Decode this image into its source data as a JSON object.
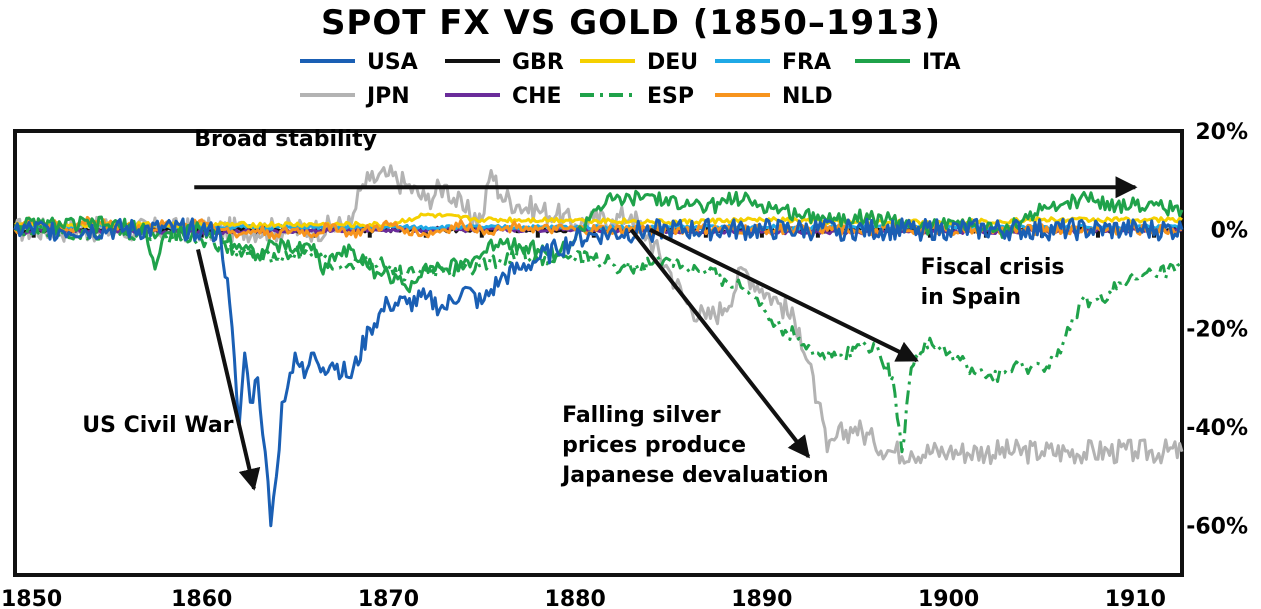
{
  "chart_data": {
    "type": "line",
    "title": "SPOT FX VS GOLD (1850–1913)",
    "xlabel": "",
    "ylabel": "",
    "xlim": [
      1850,
      1912.5
    ],
    "ylim": [
      -70,
      20
    ],
    "x_ticks": [
      {
        "value": 1850,
        "label": "1850"
      },
      {
        "value": 1860,
        "label": "1860"
      },
      {
        "value": 1870,
        "label": "1870"
      },
      {
        "value": 1880,
        "label": "1880"
      },
      {
        "value": 1890,
        "label": "1890"
      },
      {
        "value": 1900,
        "label": "1900"
      },
      {
        "value": 1910,
        "label": "1910"
      }
    ],
    "y_ticks": [
      {
        "value": 20,
        "label": "20%"
      },
      {
        "value": 0,
        "label": "0%"
      },
      {
        "value": -20,
        "label": "-20%"
      },
      {
        "value": -40,
        "label": "-40%"
      },
      {
        "value": -60,
        "label": "-60%"
      }
    ],
    "legend": [
      {
        "name": "USA",
        "color": "#1a5fb4",
        "dash": "solid"
      },
      {
        "name": "GBR",
        "color": "#111111",
        "dash": "solid"
      },
      {
        "name": "DEU",
        "color": "#f5d000",
        "dash": "solid"
      },
      {
        "name": "FRA",
        "color": "#1fa9e6",
        "dash": "solid"
      },
      {
        "name": "ITA",
        "color": "#1fa24a",
        "dash": "solid"
      },
      {
        "name": "JPN",
        "color": "#b3b3b3",
        "dash": "solid"
      },
      {
        "name": "CHE",
        "color": "#6a2c9a",
        "dash": "solid"
      },
      {
        "name": "ESP",
        "color": "#1fa24a",
        "dash": "dashdot"
      },
      {
        "name": "NLD",
        "color": "#f7941d",
        "dash": "solid"
      }
    ],
    "series": [
      {
        "name": "JPN",
        "color": "#b3b3b3",
        "dash": "solid",
        "x": [
          1850,
          1866,
          1868,
          1868.5,
          1869,
          1870,
          1871,
          1872,
          1873,
          1874,
          1875,
          1875.5,
          1876,
          1877,
          1878,
          1879,
          1880,
          1881,
          1882,
          1883,
          1884,
          1885,
          1886,
          1887,
          1888,
          1889,
          1890,
          1891,
          1892,
          1893,
          1893.5,
          1894,
          1895,
          1896,
          1897,
          1898,
          1900,
          1905,
          1910,
          1912.5
        ],
        "values": [
          0,
          0,
          1,
          8,
          10,
          11,
          9,
          6,
          9,
          4,
          2,
          12,
          7,
          5,
          4,
          3,
          1,
          2,
          2,
          3,
          -2,
          -8,
          -15,
          -18,
          -16,
          -8,
          -12,
          -15,
          -20,
          -35,
          -45,
          -42,
          -40,
          -43,
          -45,
          -45,
          -45,
          -45,
          -45,
          -45
        ]
      },
      {
        "name": "GBR",
        "color": "#111111",
        "dash": "solid",
        "x": [
          1850,
          1870,
          1890,
          1912.5
        ],
        "values": [
          0,
          0,
          0,
          0
        ]
      },
      {
        "name": "CHE",
        "color": "#6a2c9a",
        "dash": "solid",
        "x": [
          1850,
          1850.5,
          1851,
          1860,
          1870,
          1880,
          1890,
          1900,
          1912.5
        ],
        "values": [
          0,
          -1,
          0,
          -0.5,
          0,
          0,
          -0.5,
          -0.5,
          0
        ]
      },
      {
        "name": "FRA",
        "color": "#1fa9e6",
        "dash": "solid",
        "x": [
          1850,
          1855,
          1860,
          1865,
          1870,
          1875,
          1880,
          1885,
          1890,
          1895,
          1900,
          1905,
          1912.5
        ],
        "values": [
          0.5,
          1,
          0.5,
          0.5,
          0.5,
          0.5,
          0.5,
          0.5,
          0.5,
          0.5,
          0.5,
          0.5,
          0.5
        ]
      },
      {
        "name": "DEU",
        "color": "#f5d000",
        "dash": "solid",
        "x": [
          1850,
          1860,
          1870,
          1872,
          1875,
          1880,
          1885,
          1890,
          1895,
          1900,
          1905,
          1912.5
        ],
        "values": [
          1,
          1,
          1,
          3,
          2,
          2,
          1.5,
          2,
          1.5,
          1.5,
          2,
          2
        ]
      },
      {
        "name": "NLD",
        "color": "#f7941d",
        "dash": "solid",
        "x": [
          1850,
          1851,
          1852,
          1853,
          1854,
          1855,
          1856,
          1857,
          1858,
          1859,
          1860,
          1861,
          1862,
          1863,
          1864,
          1865,
          1866,
          1867,
          1868,
          1869,
          1870,
          1871,
          1872,
          1873,
          1874,
          1875,
          1876,
          1877,
          1878,
          1879,
          1880,
          1885,
          1890,
          1900,
          1912.5
        ],
        "values": [
          0,
          2,
          1,
          0,
          2,
          1,
          1,
          0,
          1,
          1,
          2,
          0,
          -1,
          0,
          -1,
          0,
          -1,
          1,
          -1,
          0,
          1,
          0,
          -1,
          0,
          1,
          0,
          0,
          1,
          0,
          0,
          0,
          0,
          0,
          0,
          0
        ]
      },
      {
        "name": "ITA",
        "color": "#1fa24a",
        "dash": "solid",
        "x": [
          1850,
          1855,
          1857,
          1857.5,
          1858,
          1860,
          1861,
          1862,
          1863,
          1864,
          1865,
          1866,
          1866.5,
          1867,
          1868,
          1869,
          1870,
          1871,
          1872,
          1873,
          1874,
          1875,
          1876,
          1877,
          1878,
          1879,
          1880,
          1881,
          1882,
          1883,
          1884,
          1885,
          1886,
          1887,
          1888,
          1889,
          1890,
          1891,
          1892,
          1893,
          1894,
          1895,
          1896,
          1897,
          1898,
          1899,
          1900,
          1901,
          1902,
          1903,
          1904,
          1905,
          1906,
          1907,
          1908,
          1909,
          1910,
          1911,
          1912.5
        ],
        "values": [
          1,
          1,
          0,
          -8,
          -1,
          0,
          -1,
          -3,
          -5,
          -3,
          -4,
          -3,
          -9,
          -5,
          -4,
          -8,
          -9,
          -12,
          -7,
          -8,
          -7,
          -5,
          -2,
          -3,
          -4,
          -5,
          -2,
          4,
          6,
          6,
          7,
          5,
          6,
          4,
          6,
          6,
          5,
          4,
          3,
          3,
          2,
          3,
          2,
          2,
          1,
          0,
          2,
          1,
          0,
          0,
          2,
          4,
          5,
          6,
          6,
          5,
          5,
          5,
          4
        ]
      },
      {
        "name": "ESP",
        "color": "#1fa24a",
        "dash": "dashdot",
        "x": [
          1850,
          1858,
          1860,
          1861,
          1862,
          1863,
          1864,
          1865,
          1866,
          1867,
          1868,
          1869,
          1870,
          1871,
          1872,
          1873,
          1874,
          1875,
          1876,
          1877,
          1878,
          1879,
          1880,
          1881,
          1882,
          1883,
          1884,
          1885,
          1886,
          1887,
          1888,
          1889,
          1890,
          1891,
          1892,
          1893,
          1894,
          1895,
          1896,
          1897,
          1897.5,
          1898,
          1898.5,
          1899,
          1900,
          1901,
          1902,
          1903,
          1904,
          1905,
          1906,
          1907,
          1908,
          1909,
          1910,
          1911,
          1912.5
        ],
        "values": [
          0,
          -1,
          -2,
          -3,
          -4,
          -5,
          -6,
          -5,
          -4,
          -8,
          -7,
          -6,
          -8,
          -9,
          -8,
          -9,
          -8,
          -7,
          -6,
          -5,
          -6,
          -5,
          -6,
          -6,
          -7,
          -8,
          -7,
          -6,
          -8,
          -9,
          -10,
          -12,
          -15,
          -20,
          -22,
          -25,
          -26,
          -24,
          -23,
          -30,
          -45,
          -28,
          -25,
          -22,
          -25,
          -28,
          -30,
          -29,
          -28,
          -28,
          -25,
          -15,
          -14,
          -12,
          -10,
          -9,
          -8
        ]
      },
      {
        "name": "USA",
        "color": "#1a5fb4",
        "dash": "solid",
        "x": [
          1850,
          1855,
          1860,
          1861,
          1861.5,
          1862,
          1862.3,
          1862.6,
          1863,
          1863.4,
          1863.7,
          1864,
          1864.3,
          1864.6,
          1865,
          1865.5,
          1866,
          1866.5,
          1867,
          1868,
          1869,
          1870,
          1871,
          1872,
          1873,
          1874,
          1875,
          1876,
          1877,
          1878,
          1879,
          1880,
          1881,
          1885,
          1890,
          1900,
          1912.5
        ],
        "values": [
          0,
          0,
          0,
          -1,
          -15,
          -40,
          -25,
          -35,
          -30,
          -45,
          -60,
          -50,
          -35,
          -32,
          -25,
          -30,
          -25,
          -28,
          -27,
          -30,
          -20,
          -15,
          -15,
          -14,
          -16,
          -12,
          -15,
          -10,
          -8,
          -6,
          -4,
          -2,
          -1,
          0,
          0,
          0,
          0
        ]
      }
    ],
    "annotations": [
      {
        "id": "broad",
        "text": [
          "Broad stability"
        ],
        "align": "start",
        "at": [
          1859.6,
          17
        ],
        "arrow": {
          "from": [
            1859.6,
            8.6
          ],
          "to": [
            1910,
            8.6
          ]
        }
      },
      {
        "id": "civil",
        "text": [
          "US Civil War"
        ],
        "align": "start",
        "at": [
          1853.6,
          -41
        ],
        "arrow": {
          "from": [
            1859.8,
            -4
          ],
          "to": [
            1862.8,
            -52.5
          ]
        }
      },
      {
        "id": "silver",
        "text": [
          "Falling silver",
          "prices produce",
          "Japanese devaluation"
        ],
        "align": "start",
        "at": [
          1879.3,
          -39
        ],
        "arrow": {
          "from": [
            1883,
            0
          ],
          "to": [
            1892.5,
            -46
          ]
        }
      },
      {
        "id": "spain",
        "text": [
          "Fiscal crisis",
          "in Spain"
        ],
        "align": "start",
        "at": [
          1898.5,
          -9
        ],
        "arrow": {
          "from": [
            1884,
            0
          ],
          "to": [
            1898.3,
            -26.5
          ]
        }
      }
    ]
  }
}
